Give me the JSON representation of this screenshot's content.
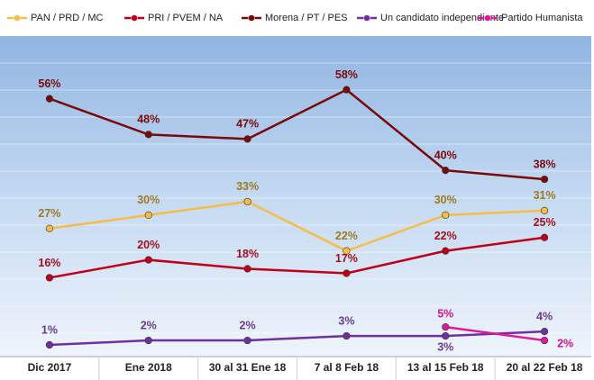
{
  "chart_data": {
    "type": "line",
    "categories": [
      "Dic 2017",
      "Ene 2018",
      "30 al 31 Ene 18",
      "7 al 8 Feb 18",
      "13 al 15 Feb 18",
      "20 al 22 Feb 18"
    ],
    "ylim": [
      0,
      70
    ],
    "series": [
      {
        "name": "PAN / PRD / MC",
        "color": "#f6bc45",
        "label_color": "#9c7a22",
        "values": [
          27,
          30,
          33,
          22,
          30,
          31
        ],
        "value_labels": [
          "27%",
          "30%",
          "33%",
          "22%",
          "30%",
          "31%"
        ]
      },
      {
        "name": "PRI / PVEM / NA",
        "color": "#c00018",
        "label_color": "#a0101e",
        "values": [
          16,
          20,
          18,
          17,
          22,
          25
        ],
        "value_labels": [
          "16%",
          "20%",
          "18%",
          "17%",
          "22%",
          "25%"
        ]
      },
      {
        "name": "Morena / PT / PES",
        "color": "#7a0a0a",
        "label_color": "#7a0a0a",
        "values": [
          56,
          48,
          47,
          58,
          40,
          38
        ],
        "value_labels": [
          "56%",
          "48%",
          "47%",
          "58%",
          "40%",
          "38%"
        ]
      },
      {
        "name": "Un candidato independiente",
        "color": "#7030a0",
        "label_color": "#6a3a8a",
        "values": [
          1,
          2,
          2,
          3,
          3,
          4
        ],
        "value_labels": [
          "1%",
          "2%",
          "2%",
          "3%",
          "3%",
          "4%"
        ]
      },
      {
        "name": "Partido Humanista",
        "color": "#e0179a",
        "label_color": "#d0168e",
        "values": [
          null,
          null,
          null,
          null,
          5,
          2
        ],
        "value_labels": [
          null,
          null,
          null,
          null,
          "5%",
          "2%"
        ]
      }
    ]
  }
}
